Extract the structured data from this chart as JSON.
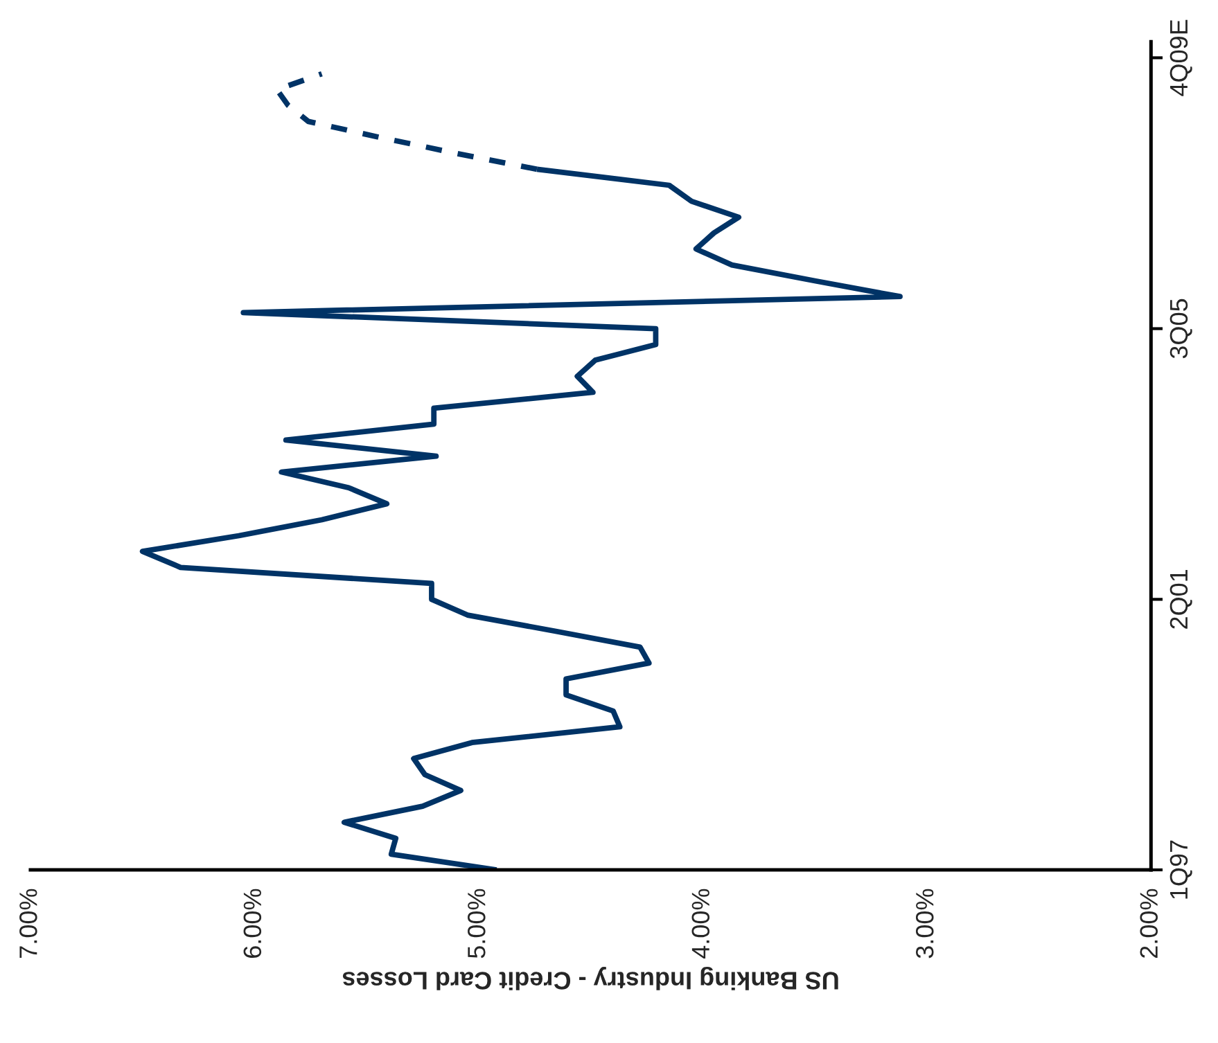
{
  "chart_data": {
    "type": "line",
    "orientation": "horizontal",
    "xlabel": "US Banking Industry - Credit Card Losses",
    "xlim": [
      7,
      2
    ],
    "xticks": [
      {
        "value": 7,
        "label": "7.00%"
      },
      {
        "value": 6,
        "label": "6.00%"
      },
      {
        "value": 5,
        "label": "5.00%"
      },
      {
        "value": 4,
        "label": "4.00%"
      },
      {
        "value": 3,
        "label": "3.00%"
      },
      {
        "value": 2,
        "label": "2.00%"
      }
    ],
    "ylim": [
      "1997-01",
      "2010-01"
    ],
    "yticks": [
      {
        "value": "1997-01",
        "label": "1Q97"
      },
      {
        "value": "2001-04",
        "label": "2Q01"
      },
      {
        "value": "2005-07",
        "label": "3Q05"
      },
      {
        "value": "2009-10",
        "label": "4Q09E"
      }
    ],
    "grid": false,
    "legend": false,
    "marker": "none",
    "series": [
      {
        "color": "#003366",
        "line_style": "solid",
        "x": [
          "1997-01",
          "1997-04",
          "1997-07",
          "1997-10",
          "1998-01",
          "1998-04",
          "1998-07",
          "1998-10",
          "1999-01",
          "1999-04",
          "1999-07",
          "1999-10",
          "2000-01",
          "2000-04",
          "2000-07",
          "2000-10",
          "2001-01",
          "2001-04",
          "2001-07",
          "2001-10",
          "2002-01",
          "2002-04",
          "2002-07",
          "2002-10",
          "2003-01",
          "2003-04",
          "2003-07",
          "2003-10",
          "2004-01",
          "2004-04",
          "2004-07",
          "2004-10",
          "2005-01",
          "2005-04",
          "2005-07",
          "2005-10",
          "2006-01",
          "2006-04",
          "2006-07",
          "2006-10",
          "2007-01",
          "2007-04",
          "2007-07",
          "2007-10",
          "2008-01"
        ],
        "values": [
          4.92,
          5.39,
          5.37,
          5.6,
          5.25,
          5.08,
          5.24,
          5.29,
          5.03,
          4.37,
          4.4,
          4.61,
          4.61,
          4.24,
          4.28,
          4.66,
          5.05,
          5.21,
          5.21,
          6.33,
          6.5,
          6.07,
          5.7,
          5.41,
          5.58,
          5.88,
          5.19,
          5.86,
          5.2,
          5.2,
          4.49,
          4.56,
          4.48,
          4.21,
          4.21,
          6.05,
          3.12,
          3.5,
          3.87,
          4.03,
          3.95,
          3.84,
          4.05,
          4.15,
          4.74
        ]
      },
      {
        "color": "#003366",
        "line_style": "dashed",
        "x": [
          "2008-01",
          "2008-04",
          "2008-07",
          "2008-10",
          "2009-01",
          "2009-04",
          "2009-07"
        ],
        "values": [
          4.74,
          5.1,
          5.44,
          5.76,
          5.85,
          5.9,
          5.7
        ]
      }
    ]
  }
}
